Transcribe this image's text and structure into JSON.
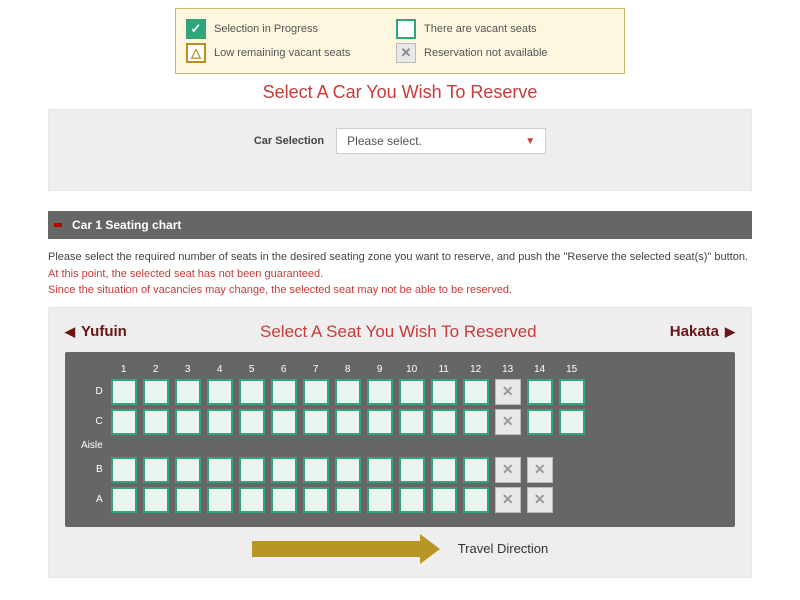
{
  "legend": {
    "sel_in_progress": "Selection in Progress",
    "vacant": "There are vacant seats",
    "few": "Low remaining vacant seats",
    "na": "Reservation not available",
    "check_glyph": "✓",
    "tri_glyph": "△",
    "x_glyph": "✕"
  },
  "headings": {
    "select_car": "Select A Car You Wish To Reserve",
    "seat_title": "Select A Seat You Wish To Reserved"
  },
  "car_select": {
    "label": "Car Selection",
    "placeholder": "Please select."
  },
  "section": {
    "title": "Car 1 Seating chart"
  },
  "instructions": {
    "line1": "Please select the required number of seats in the desired seating zone you want to reserve, and push the \"Reserve the selected seat(s)\" button.",
    "warn1": "At this point, the selected seat has not been guaranteed.",
    "warn2": "Since the situation of vacancies may change, the selected seat may not be able to be reserved."
  },
  "direction": {
    "left_label": "Yufuin",
    "right_label": "Hakata",
    "left_tri": "◀",
    "right_tri": "▶",
    "travel_label": "Travel Direction"
  },
  "seat_chart": {
    "columns": [
      "1",
      "2",
      "3",
      "4",
      "5",
      "6",
      "7",
      "8",
      "9",
      "10",
      "11",
      "12",
      "13",
      "14",
      "15"
    ],
    "rows": [
      "D",
      "C",
      "Aisle",
      "B",
      "A"
    ],
    "x_glyph": "✕",
    "na_seats": {
      "D": [
        13
      ],
      "C": [
        13
      ],
      "B": [
        13,
        14
      ],
      "A": [
        13,
        14
      ]
    },
    "hidden_seats": {
      "B": [
        15
      ],
      "A": [
        15
      ]
    }
  },
  "colors": {
    "accent_red": "#c93a3a",
    "dark_red": "#6b1515",
    "green": "#30a67a",
    "gold": "#b89625",
    "panel_grey": "#666"
  }
}
